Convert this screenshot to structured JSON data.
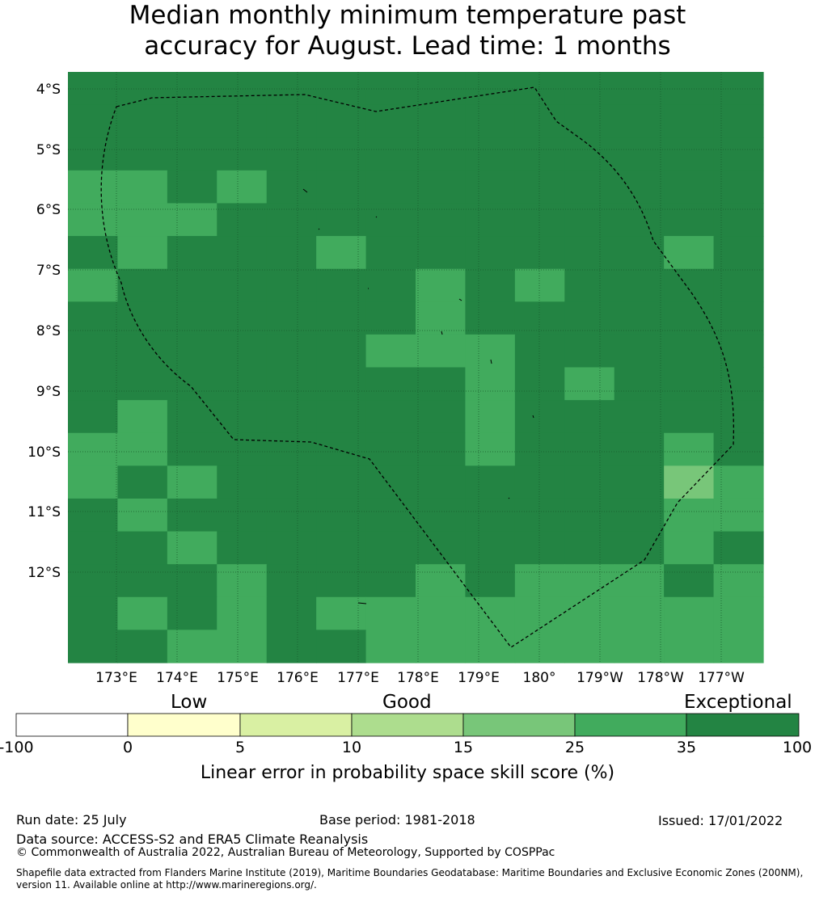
{
  "title": {
    "line1": "Median monthly minimum temperature past",
    "line2": "accuracy for August. Lead time: 1 months"
  },
  "map": {
    "lon_ticks": [
      "173°E",
      "174°E",
      "175°E",
      "176°E",
      "177°E",
      "178°E",
      "179°E",
      "180°",
      "179°W",
      "178°W",
      "177°W"
    ],
    "lat_ticks": [
      "4°S",
      "5°S",
      "6°S",
      "7°S",
      "8°S",
      "9°S",
      "10°S",
      "11°S",
      "12°S"
    ],
    "grid": [
      [
        5,
        5,
        5,
        5,
        5,
        5,
        5,
        5,
        5,
        5,
        5,
        5,
        5,
        5
      ],
      [
        5,
        5,
        5,
        5,
        5,
        5,
        5,
        5,
        5,
        5,
        5,
        5,
        5,
        5
      ],
      [
        5,
        5,
        5,
        5,
        5,
        5,
        5,
        5,
        5,
        5,
        5,
        5,
        5,
        5
      ],
      [
        4,
        4,
        5,
        4,
        5,
        5,
        5,
        5,
        5,
        5,
        5,
        5,
        5,
        5
      ],
      [
        4,
        4,
        4,
        5,
        5,
        5,
        5,
        5,
        5,
        5,
        5,
        5,
        5,
        5
      ],
      [
        5,
        4,
        5,
        5,
        5,
        4,
        5,
        5,
        5,
        5,
        5,
        5,
        4,
        5
      ],
      [
        4,
        5,
        5,
        5,
        5,
        5,
        5,
        4,
        5,
        4,
        5,
        5,
        5,
        5
      ],
      [
        5,
        5,
        5,
        5,
        5,
        5,
        5,
        4,
        5,
        5,
        5,
        5,
        5,
        5
      ],
      [
        5,
        5,
        5,
        5,
        5,
        5,
        4,
        4,
        4,
        5,
        5,
        5,
        5,
        5
      ],
      [
        5,
        5,
        5,
        5,
        5,
        5,
        5,
        5,
        4,
        5,
        4,
        5,
        5,
        5
      ],
      [
        5,
        4,
        5,
        5,
        5,
        5,
        5,
        5,
        4,
        5,
        5,
        5,
        5,
        5
      ],
      [
        4,
        4,
        5,
        5,
        5,
        5,
        5,
        5,
        4,
        5,
        5,
        5,
        4,
        5
      ],
      [
        4,
        5,
        4,
        5,
        5,
        5,
        5,
        5,
        5,
        5,
        5,
        5,
        3,
        4
      ],
      [
        5,
        4,
        5,
        5,
        5,
        5,
        5,
        5,
        5,
        5,
        5,
        5,
        4,
        4
      ],
      [
        5,
        5,
        4,
        5,
        5,
        5,
        5,
        5,
        5,
        5,
        5,
        5,
        4,
        5
      ],
      [
        5,
        5,
        5,
        4,
        5,
        5,
        5,
        4,
        5,
        4,
        4,
        4,
        5,
        4
      ],
      [
        5,
        4,
        5,
        4,
        5,
        4,
        4,
        4,
        4,
        4,
        4,
        4,
        4,
        4
      ],
      [
        5,
        5,
        4,
        4,
        5,
        5,
        4,
        4,
        4,
        4,
        4,
        4,
        4,
        4
      ]
    ],
    "colors": [
      "#ffffcc",
      "#d9f0a3",
      "#addd8e",
      "#78c679",
      "#41ab5d",
      "#238443"
    ]
  },
  "colorbar": {
    "category_low": "Low",
    "category_good": "Good",
    "category_exceptional": "Exceptional",
    "ticks": [
      "-100",
      "0",
      "5",
      "10",
      "15",
      "25",
      "35",
      "100"
    ],
    "segment_colors": [
      "#ffffff",
      "#ffffcc",
      "#d9f0a3",
      "#addd8e",
      "#78c679",
      "#41ab5d",
      "#238443"
    ],
    "label": "Linear error in probability space skill score (%)"
  },
  "footer": {
    "run_date": "Run date: 25 July",
    "base_period": "Base period: 1981-2018",
    "issued": "Issued: 17/01/2022",
    "data_source": "Data source: ACCESS-S2 and ERA5 Climate Reanalysis",
    "copyright": "© Commonwealth of Australia 2022, Australian Bureau of Meteorology, Supported by COSPPac",
    "shapefile_line1": "Shapefile data extracted from Flanders Marine Institute (2019), Maritime Boundaries Geodatabase: Maritime Boundaries and Exclusive Economic Zones (200NM),",
    "shapefile_line2": "version 11. Available online at http://www.marineregions.org/."
  }
}
